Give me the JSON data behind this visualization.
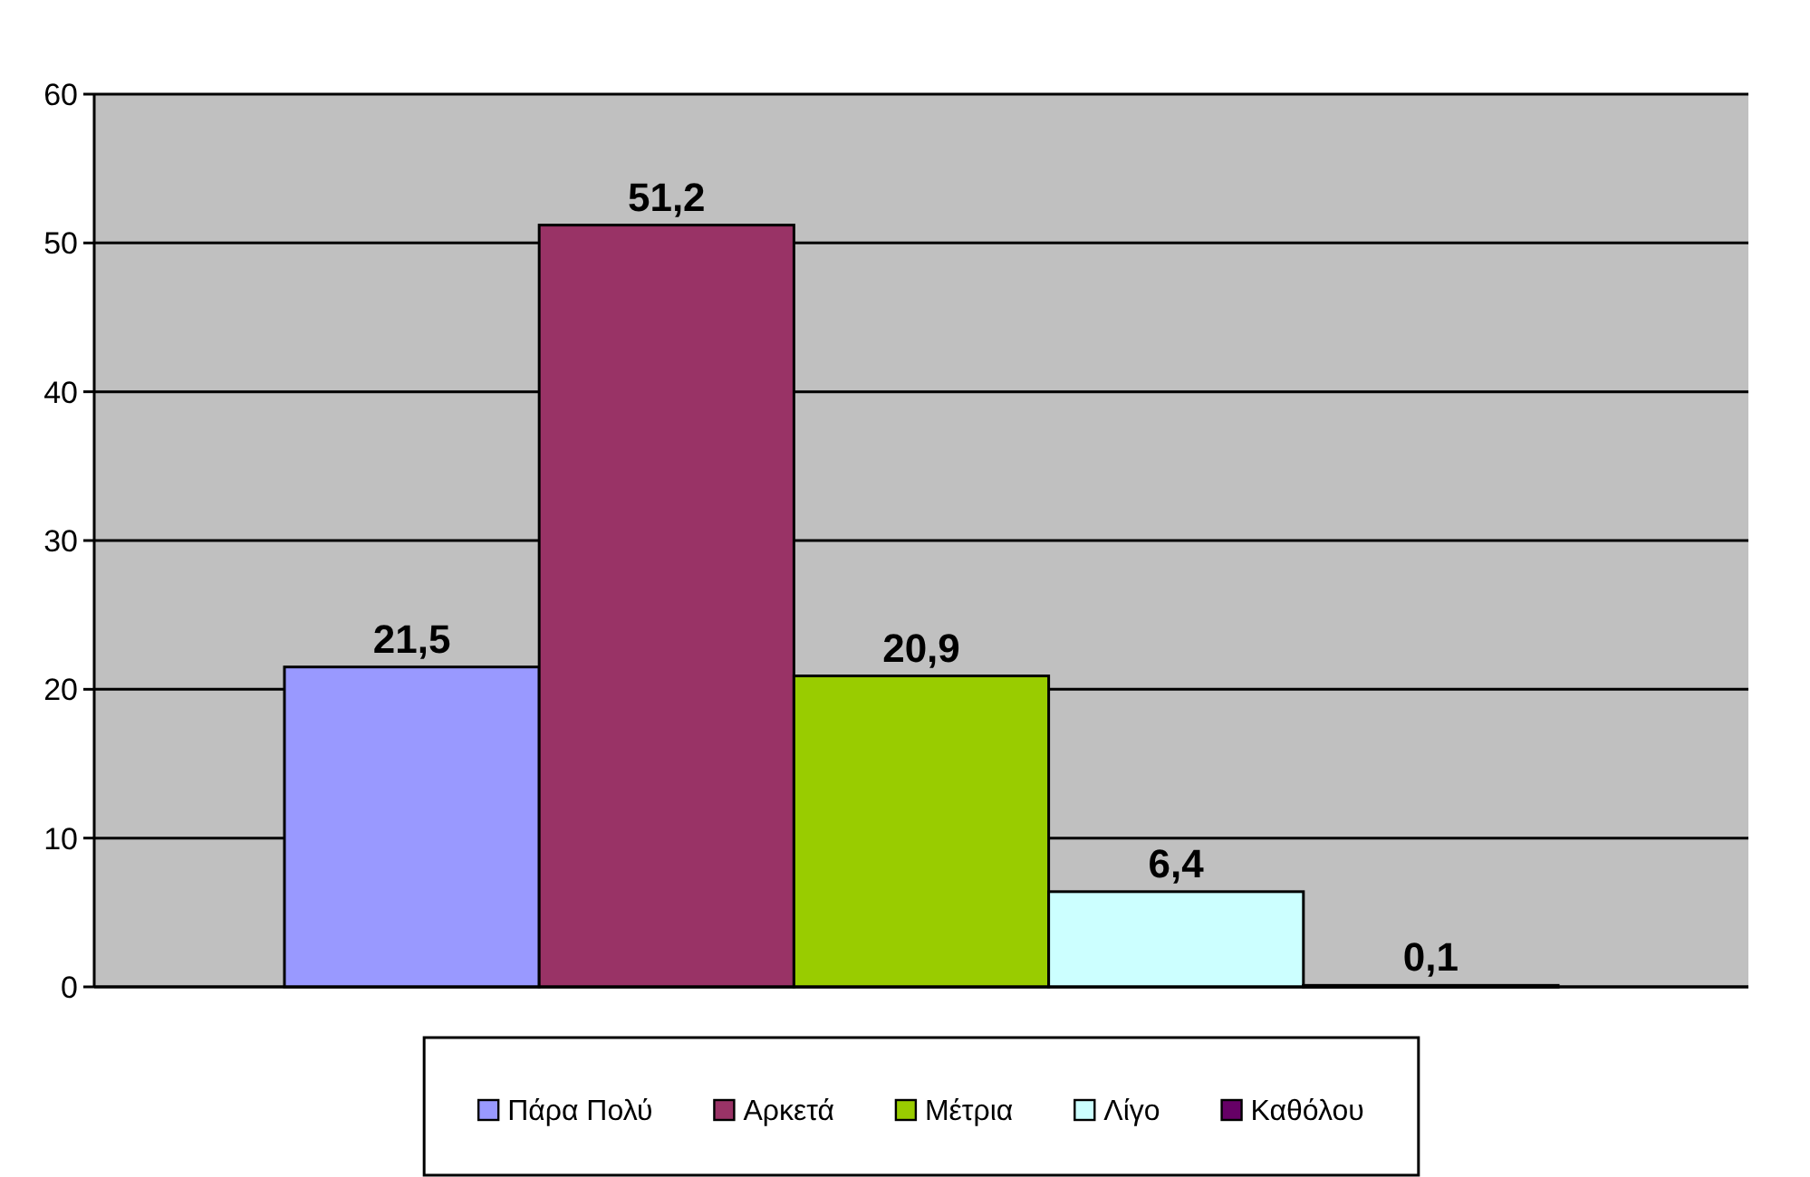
{
  "chart_data": {
    "type": "bar",
    "categories": [
      null
    ],
    "series": [
      {
        "name": "Πάρα Πολύ",
        "color": "#9999ff",
        "values": [
          21.5
        ],
        "value_labels": [
          "21,5"
        ]
      },
      {
        "name": "Αρκετά",
        "color": "#993366",
        "values": [
          51.2
        ],
        "value_labels": [
          "51,2"
        ]
      },
      {
        "name": "Μέτρια",
        "color": "#99cc00",
        "values": [
          20.9
        ],
        "value_labels": [
          "20,9"
        ]
      },
      {
        "name": "Λίγο",
        "color": "#ccffff",
        "values": [
          6.4
        ],
        "value_labels": [
          "6,4"
        ]
      },
      {
        "name": "Καθόλου",
        "color": "#660066",
        "values": [
          0.1
        ],
        "value_labels": [
          "0,1"
        ]
      }
    ],
    "ylim": [
      0,
      60
    ],
    "yticks": [
      0,
      10,
      20,
      30,
      40,
      50,
      60
    ],
    "grid": "y",
    "legend": "bottom"
  }
}
